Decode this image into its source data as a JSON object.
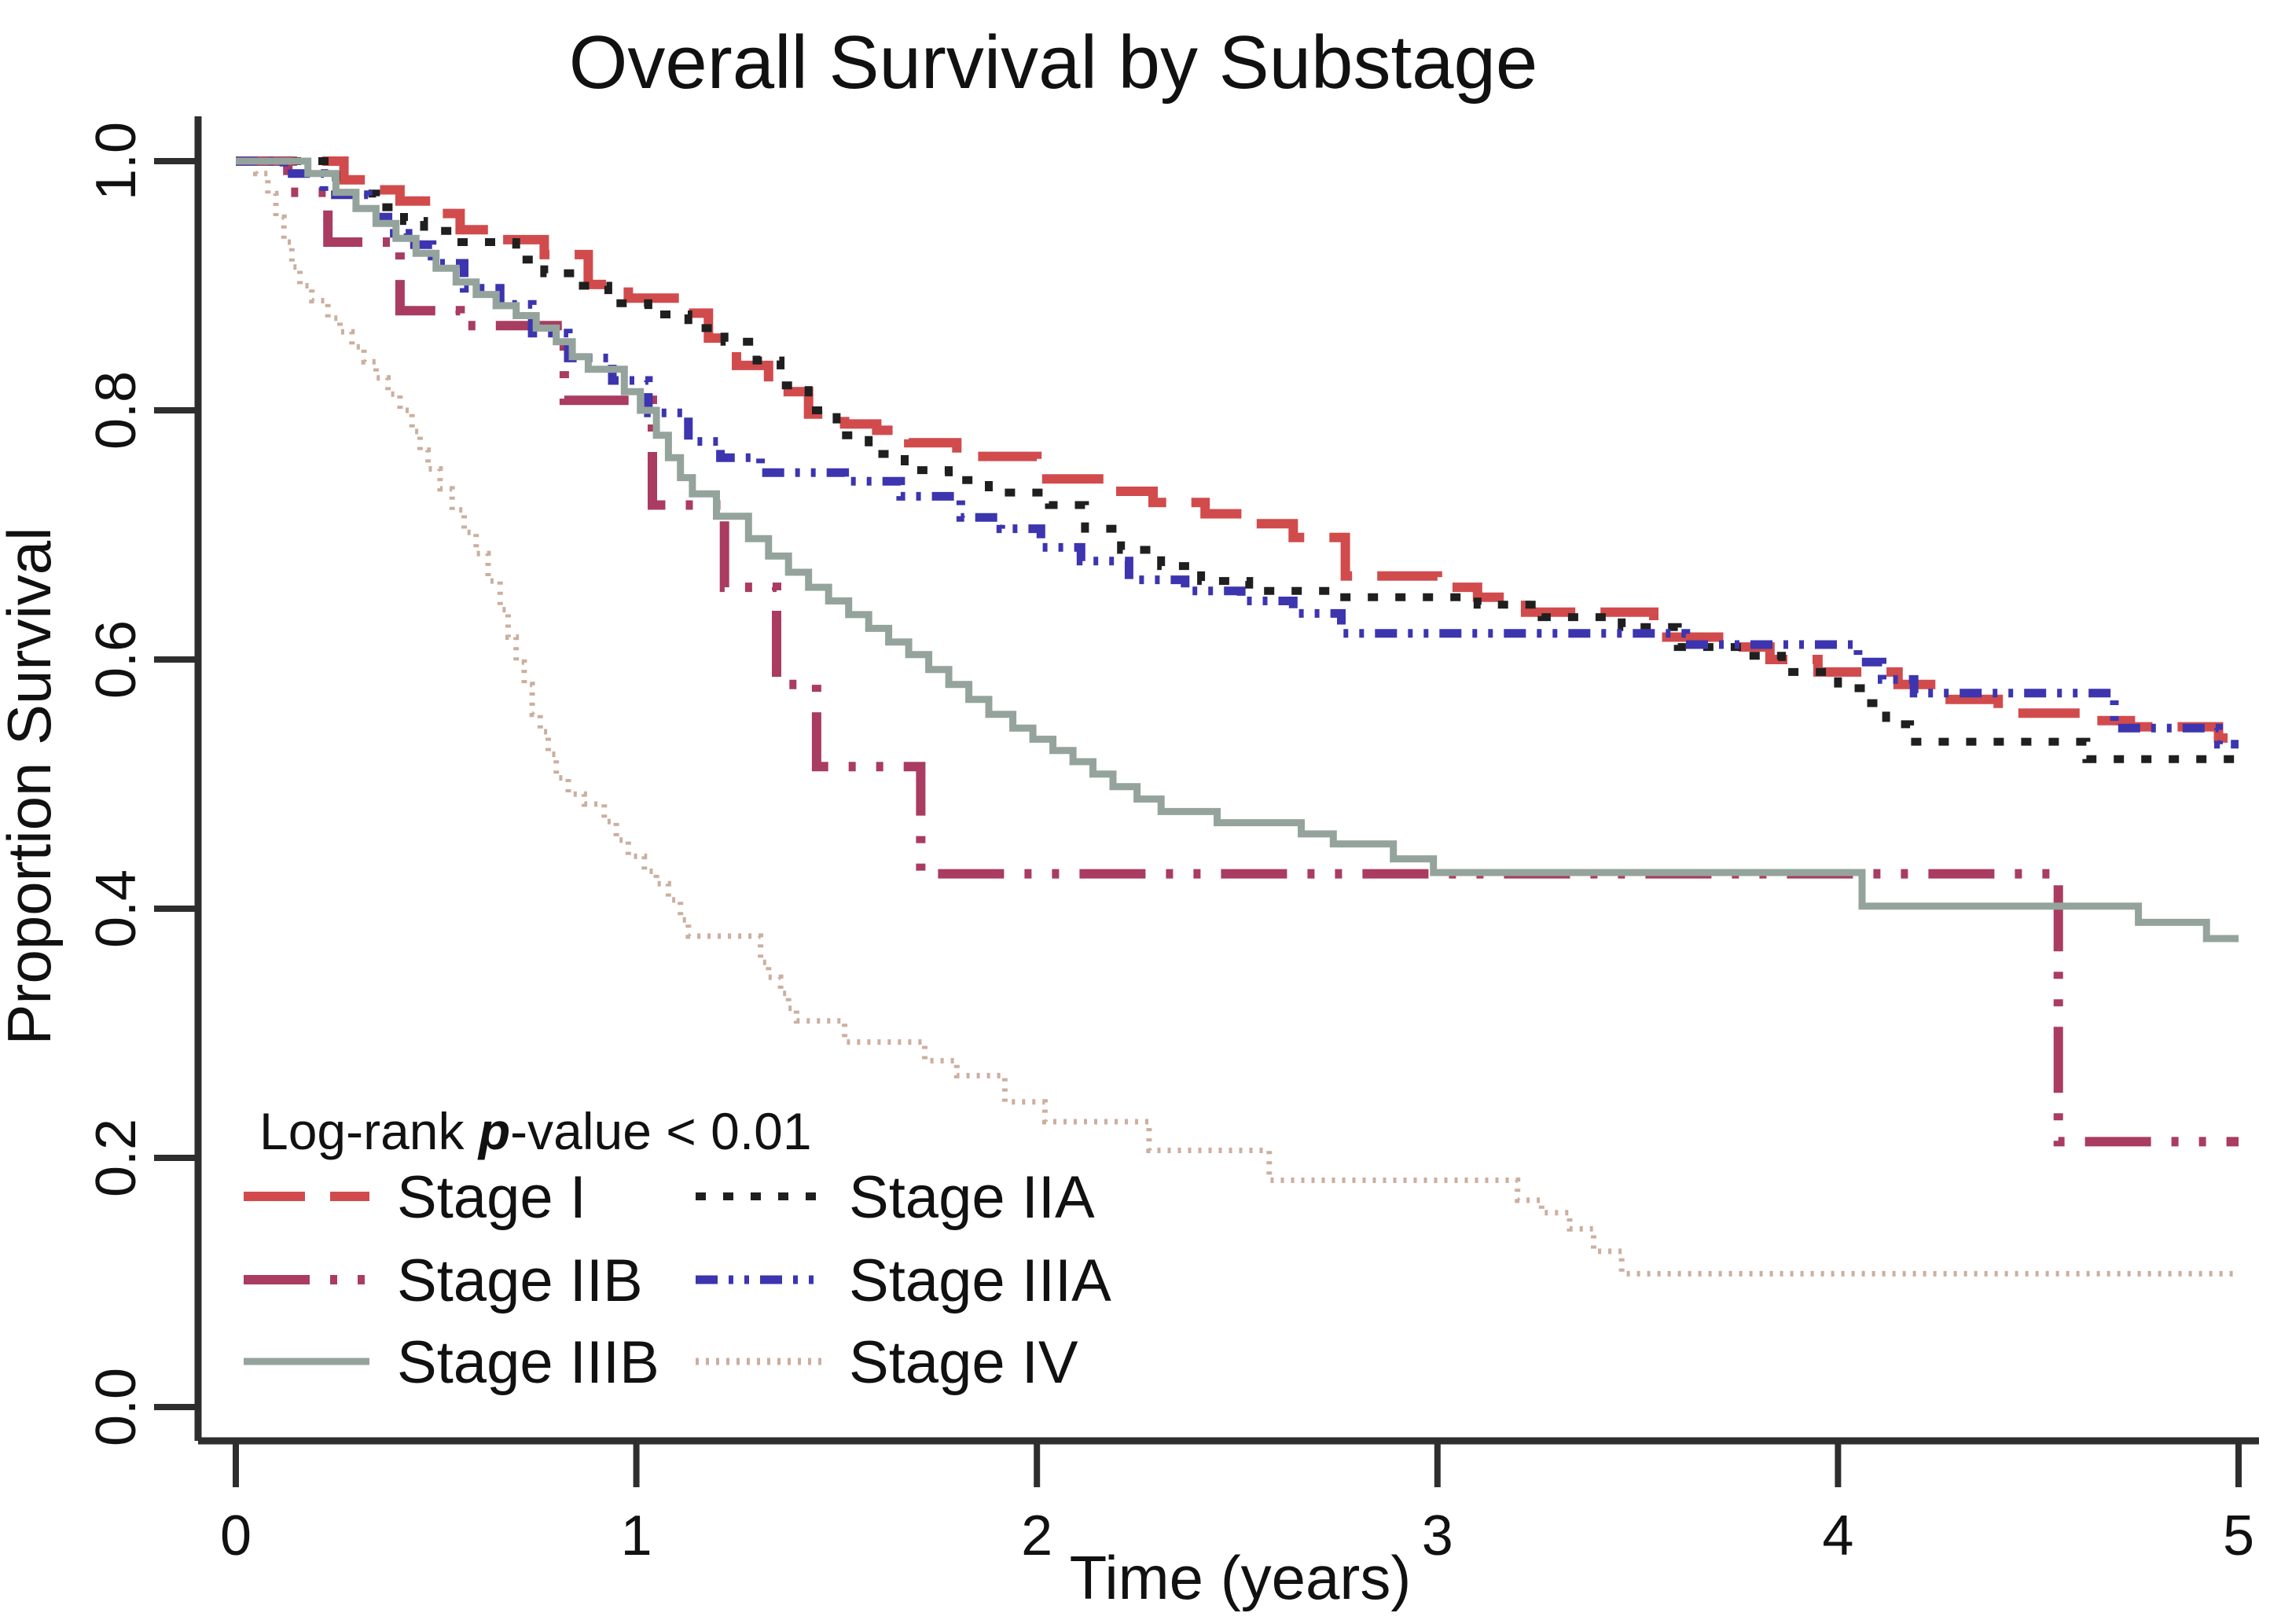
{
  "page": {
    "background": "#ffffff"
  },
  "chart_data": {
    "type": "line",
    "subtype": "kaplan-meier-step",
    "title": "Overall Survival by Substage",
    "xlabel": "Time (years)",
    "ylabel": "Proportion Survival",
    "xlim": [
      0,
      5
    ],
    "ylim": [
      0.0,
      1.0
    ],
    "grid": false,
    "legend_position": "inside-bottom-left",
    "axis_color": "#2e2e2e",
    "text_color": "#111111",
    "xtick_values": [
      0,
      1,
      2,
      3,
      4,
      5
    ],
    "xtick_labels": [
      "0",
      "1",
      "2",
      "3",
      "4",
      "5"
    ],
    "ytick_values": [
      1.0,
      0.8,
      0.6,
      0.4,
      0.2,
      0.0
    ],
    "ytick_labels": [
      "1.0",
      "0.8",
      "0.6",
      "0.4",
      "0.2",
      "0.0"
    ],
    "annotation": {
      "prefix": "Log-rank ",
      "emphasis": "p",
      "suffix": "-value < 0.01"
    },
    "series": [
      {
        "name": "Stage I",
        "color": "#d14b4d",
        "dash": "78 32",
        "line_width": 12,
        "legend_column": 0,
        "legend_row": 0,
        "points": [
          [
            0,
            1
          ],
          [
            0.27,
            0.985
          ],
          [
            0.36,
            0.977
          ],
          [
            0.41,
            0.968
          ],
          [
            0.5,
            0.958
          ],
          [
            0.56,
            0.945
          ],
          [
            0.63,
            0.937
          ],
          [
            0.77,
            0.925
          ],
          [
            0.88,
            0.901
          ],
          [
            0.98,
            0.89
          ],
          [
            1.11,
            0.878
          ],
          [
            1.18,
            0.858
          ],
          [
            1.25,
            0.836
          ],
          [
            1.33,
            0.815
          ],
          [
            1.43,
            0.797
          ],
          [
            1.52,
            0.789
          ],
          [
            1.6,
            0.784
          ],
          [
            1.68,
            0.774
          ],
          [
            1.8,
            0.763
          ],
          [
            2.0,
            0.745
          ],
          [
            2.18,
            0.735
          ],
          [
            2.29,
            0.726
          ],
          [
            2.42,
            0.717
          ],
          [
            2.52,
            0.709
          ],
          [
            2.64,
            0.698
          ],
          [
            2.77,
            0.667
          ],
          [
            3.0,
            0.658
          ],
          [
            3.1,
            0.65
          ],
          [
            3.22,
            0.638
          ],
          [
            3.54,
            0.618
          ],
          [
            3.72,
            0.61
          ],
          [
            3.83,
            0.6
          ],
          [
            3.95,
            0.59
          ],
          [
            4.15,
            0.58
          ],
          [
            4.28,
            0.568
          ],
          [
            4.4,
            0.557
          ],
          [
            4.63,
            0.551
          ],
          [
            4.73,
            0.546
          ],
          [
            4.95,
            0.537
          ],
          [
            5,
            0.537
          ]
        ]
      },
      {
        "name": "Stage IIA",
        "color": "#1f1f1f",
        "dash": "13 22",
        "line_width": 10,
        "legend_column": 1,
        "legend_row": 0,
        "points": [
          [
            0,
            1
          ],
          [
            0.25,
            0.974
          ],
          [
            0.35,
            0.963
          ],
          [
            0.42,
            0.952
          ],
          [
            0.47,
            0.944
          ],
          [
            0.55,
            0.935
          ],
          [
            0.7,
            0.921
          ],
          [
            0.77,
            0.91
          ],
          [
            0.85,
            0.9
          ],
          [
            0.93,
            0.886
          ],
          [
            1.03,
            0.877
          ],
          [
            1.13,
            0.866
          ],
          [
            1.22,
            0.855
          ],
          [
            1.3,
            0.84
          ],
          [
            1.36,
            0.82
          ],
          [
            1.43,
            0.8
          ],
          [
            1.5,
            0.78
          ],
          [
            1.58,
            0.765
          ],
          [
            1.67,
            0.752
          ],
          [
            1.78,
            0.744
          ],
          [
            1.88,
            0.734
          ],
          [
            2.03,
            0.724
          ],
          [
            2.12,
            0.705
          ],
          [
            2.21,
            0.688
          ],
          [
            2.31,
            0.675
          ],
          [
            2.41,
            0.663
          ],
          [
            2.53,
            0.655
          ],
          [
            2.75,
            0.65
          ],
          [
            3.1,
            0.644
          ],
          [
            3.26,
            0.634
          ],
          [
            3.46,
            0.626
          ],
          [
            3.6,
            0.61
          ],
          [
            3.76,
            0.603
          ],
          [
            3.86,
            0.59
          ],
          [
            4.0,
            0.577
          ],
          [
            4.07,
            0.565
          ],
          [
            4.12,
            0.548
          ],
          [
            4.18,
            0.534
          ],
          [
            4.62,
            0.52
          ],
          [
            5,
            0.52
          ]
        ]
      },
      {
        "name": "Stage IIB",
        "color": "#a93c60",
        "dash": "84 26 9 26 9 26",
        "line_width": 12,
        "legend_column": 0,
        "legend_row": 1,
        "points": [
          [
            0,
            1
          ],
          [
            0.13,
            0.975
          ],
          [
            0.23,
            0.935
          ],
          [
            0.41,
            0.88
          ],
          [
            0.56,
            0.868
          ],
          [
            0.82,
            0.808
          ],
          [
            1.04,
            0.724
          ],
          [
            1.22,
            0.658
          ],
          [
            1.35,
            0.58
          ],
          [
            1.45,
            0.514
          ],
          [
            1.71,
            0.428
          ],
          [
            4.55,
            0.213
          ],
          [
            5,
            0.213
          ]
        ]
      },
      {
        "name": "Stage IIIA",
        "color": "#3c35af",
        "dash": "28 14 6 14 6 14",
        "line_width": 11,
        "legend_column": 1,
        "legend_row": 1,
        "points": [
          [
            0,
            1
          ],
          [
            0.12,
            0.99
          ],
          [
            0.22,
            0.973
          ],
          [
            0.33,
            0.955
          ],
          [
            0.38,
            0.942
          ],
          [
            0.43,
            0.933
          ],
          [
            0.49,
            0.918
          ],
          [
            0.57,
            0.898
          ],
          [
            0.66,
            0.885
          ],
          [
            0.74,
            0.862
          ],
          [
            0.83,
            0.842
          ],
          [
            0.94,
            0.824
          ],
          [
            1.03,
            0.798
          ],
          [
            1.13,
            0.775
          ],
          [
            1.21,
            0.762
          ],
          [
            1.31,
            0.75
          ],
          [
            1.52,
            0.743
          ],
          [
            1.66,
            0.731
          ],
          [
            1.81,
            0.714
          ],
          [
            1.91,
            0.705
          ],
          [
            2.01,
            0.69
          ],
          [
            2.11,
            0.679
          ],
          [
            2.23,
            0.664
          ],
          [
            2.37,
            0.655
          ],
          [
            2.51,
            0.647
          ],
          [
            2.64,
            0.637
          ],
          [
            2.76,
            0.621
          ],
          [
            3.62,
            0.612
          ],
          [
            4.05,
            0.598
          ],
          [
            4.11,
            0.584
          ],
          [
            4.19,
            0.573
          ],
          [
            4.69,
            0.545
          ],
          [
            4.95,
            0.532
          ],
          [
            5,
            0.532
          ]
        ]
      },
      {
        "name": "Stage IIIB",
        "color": "#94a49c",
        "dash": "",
        "line_width": 9,
        "legend_column": 0,
        "legend_row": 2,
        "points": [
          [
            0,
            1
          ],
          [
            0.18,
            0.99
          ],
          [
            0.25,
            0.975
          ],
          [
            0.3,
            0.962
          ],
          [
            0.35,
            0.95
          ],
          [
            0.4,
            0.938
          ],
          [
            0.45,
            0.926
          ],
          [
            0.5,
            0.914
          ],
          [
            0.55,
            0.903
          ],
          [
            0.6,
            0.893
          ],
          [
            0.65,
            0.884
          ],
          [
            0.7,
            0.876
          ],
          [
            0.75,
            0.866
          ],
          [
            0.8,
            0.855
          ],
          [
            0.84,
            0.843
          ],
          [
            0.88,
            0.833
          ],
          [
            0.97,
            0.815
          ],
          [
            1.01,
            0.8
          ],
          [
            1.05,
            0.78
          ],
          [
            1.08,
            0.762
          ],
          [
            1.11,
            0.746
          ],
          [
            1.14,
            0.733
          ],
          [
            1.2,
            0.715
          ],
          [
            1.28,
            0.697
          ],
          [
            1.33,
            0.683
          ],
          [
            1.38,
            0.67
          ],
          [
            1.43,
            0.658
          ],
          [
            1.48,
            0.647
          ],
          [
            1.53,
            0.636
          ],
          [
            1.58,
            0.625
          ],
          [
            1.63,
            0.614
          ],
          [
            1.68,
            0.604
          ],
          [
            1.73,
            0.592
          ],
          [
            1.78,
            0.58
          ],
          [
            1.83,
            0.568
          ],
          [
            1.88,
            0.556
          ],
          [
            1.94,
            0.545
          ],
          [
            1.99,
            0.536
          ],
          [
            2.04,
            0.527
          ],
          [
            2.09,
            0.518
          ],
          [
            2.14,
            0.508
          ],
          [
            2.19,
            0.498
          ],
          [
            2.25,
            0.488
          ],
          [
            2.31,
            0.478
          ],
          [
            2.45,
            0.469
          ],
          [
            2.66,
            0.46
          ],
          [
            2.74,
            0.452
          ],
          [
            2.89,
            0.44
          ],
          [
            2.99,
            0.429
          ],
          [
            4.06,
            0.402
          ],
          [
            4.75,
            0.389
          ],
          [
            4.92,
            0.376
          ],
          [
            5,
            0.376
          ]
        ]
      },
      {
        "name": "Stage IV",
        "color": "#cbaf9f",
        "dash": "4 9",
        "line_width": 7,
        "legend_column": 1,
        "legend_row": 2,
        "points": [
          [
            0,
            1
          ],
          [
            0.05,
            0.99
          ],
          [
            0.08,
            0.974
          ],
          [
            0.1,
            0.955
          ],
          [
            0.12,
            0.935
          ],
          [
            0.14,
            0.915
          ],
          [
            0.16,
            0.9
          ],
          [
            0.19,
            0.888
          ],
          [
            0.23,
            0.874
          ],
          [
            0.26,
            0.863
          ],
          [
            0.29,
            0.851
          ],
          [
            0.32,
            0.839
          ],
          [
            0.35,
            0.826
          ],
          [
            0.38,
            0.813
          ],
          [
            0.41,
            0.8
          ],
          [
            0.44,
            0.783
          ],
          [
            0.46,
            0.768
          ],
          [
            0.48,
            0.753
          ],
          [
            0.51,
            0.737
          ],
          [
            0.54,
            0.72
          ],
          [
            0.57,
            0.702
          ],
          [
            0.6,
            0.685
          ],
          [
            0.63,
            0.663
          ],
          [
            0.66,
            0.64
          ],
          [
            0.68,
            0.618
          ],
          [
            0.7,
            0.598
          ],
          [
            0.72,
            0.58
          ],
          [
            0.74,
            0.556
          ],
          [
            0.76,
            0.542
          ],
          [
            0.78,
            0.524
          ],
          [
            0.8,
            0.505
          ],
          [
            0.83,
            0.492
          ],
          [
            0.87,
            0.484
          ],
          [
            0.92,
            0.47
          ],
          [
            0.95,
            0.455
          ],
          [
            0.98,
            0.442
          ],
          [
            1.02,
            0.43
          ],
          [
            1.05,
            0.42
          ],
          [
            1.08,
            0.407
          ],
          [
            1.11,
            0.391
          ],
          [
            1.13,
            0.378
          ],
          [
            1.31,
            0.357
          ],
          [
            1.33,
            0.345
          ],
          [
            1.36,
            0.332
          ],
          [
            1.38,
            0.32
          ],
          [
            1.4,
            0.31
          ],
          [
            1.52,
            0.293
          ],
          [
            1.72,
            0.278
          ],
          [
            1.8,
            0.266
          ],
          [
            1.92,
            0.245
          ],
          [
            2.02,
            0.229
          ],
          [
            2.28,
            0.206
          ],
          [
            2.58,
            0.182
          ],
          [
            3.2,
            0.166
          ],
          [
            3.26,
            0.156
          ],
          [
            3.33,
            0.143
          ],
          [
            3.39,
            0.125
          ],
          [
            3.46,
            0.107
          ],
          [
            5,
            0.107
          ]
        ]
      }
    ]
  }
}
